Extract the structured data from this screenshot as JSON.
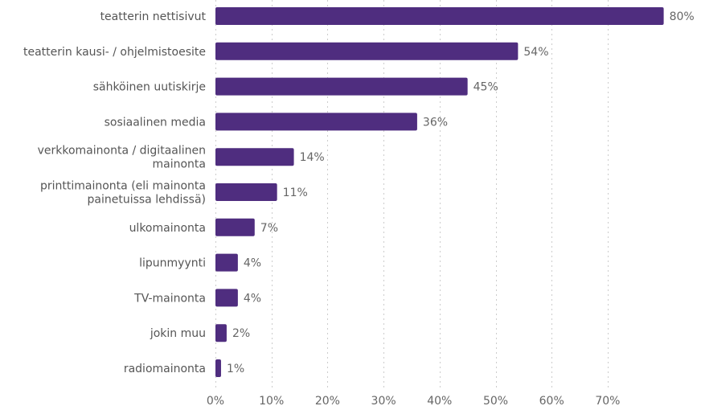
{
  "chart_data": {
    "type": "bar",
    "orientation": "horizontal",
    "categories": [
      "teatterin nettisivut",
      "teatterin kausi- / ohjelmistoesite",
      "sähköinen uutiskirje",
      "sosiaalinen media",
      "verkkomainonta / digitaalinen mainonta",
      "printtimainonta (eli mainonta painetuissa lehdissä)",
      "ulkomainonta",
      "lipunmyynti",
      "TV-mainonta",
      "jokin muu",
      "radiomainonta"
    ],
    "category_lines": [
      [
        "teatterin nettisivut"
      ],
      [
        "teatterin kausi- / ohjelmistoesite"
      ],
      [
        "sähköinen uutiskirje"
      ],
      [
        "sosiaalinen media"
      ],
      [
        "verkkomainonta / digitaalinen",
        "mainonta"
      ],
      [
        "printtimainonta (eli mainonta",
        "painetuissa lehdissä)"
      ],
      [
        "ulkomainonta"
      ],
      [
        "lipunmyynti"
      ],
      [
        "TV-mainonta"
      ],
      [
        "jokin muu"
      ],
      [
        "radiomainonta"
      ]
    ],
    "values": [
      80,
      54,
      45,
      36,
      14,
      11,
      7,
      4,
      4,
      2,
      1
    ],
    "value_labels": [
      "80%",
      "54%",
      "45%",
      "36%",
      "14%",
      "11%",
      "7%",
      "4%",
      "4%",
      "2%",
      "1%"
    ],
    "xticks": [
      0,
      10,
      20,
      30,
      40,
      50,
      60,
      70
    ],
    "xtick_labels": [
      "0%",
      "10%",
      "20%",
      "30%",
      "40%",
      "50%",
      "60%",
      "70%"
    ],
    "xlim": [
      0,
      80
    ],
    "grid": "vertical-dotted",
    "bar_color": "#4f2d7f",
    "title": "",
    "xlabel": "",
    "ylabel": ""
  }
}
